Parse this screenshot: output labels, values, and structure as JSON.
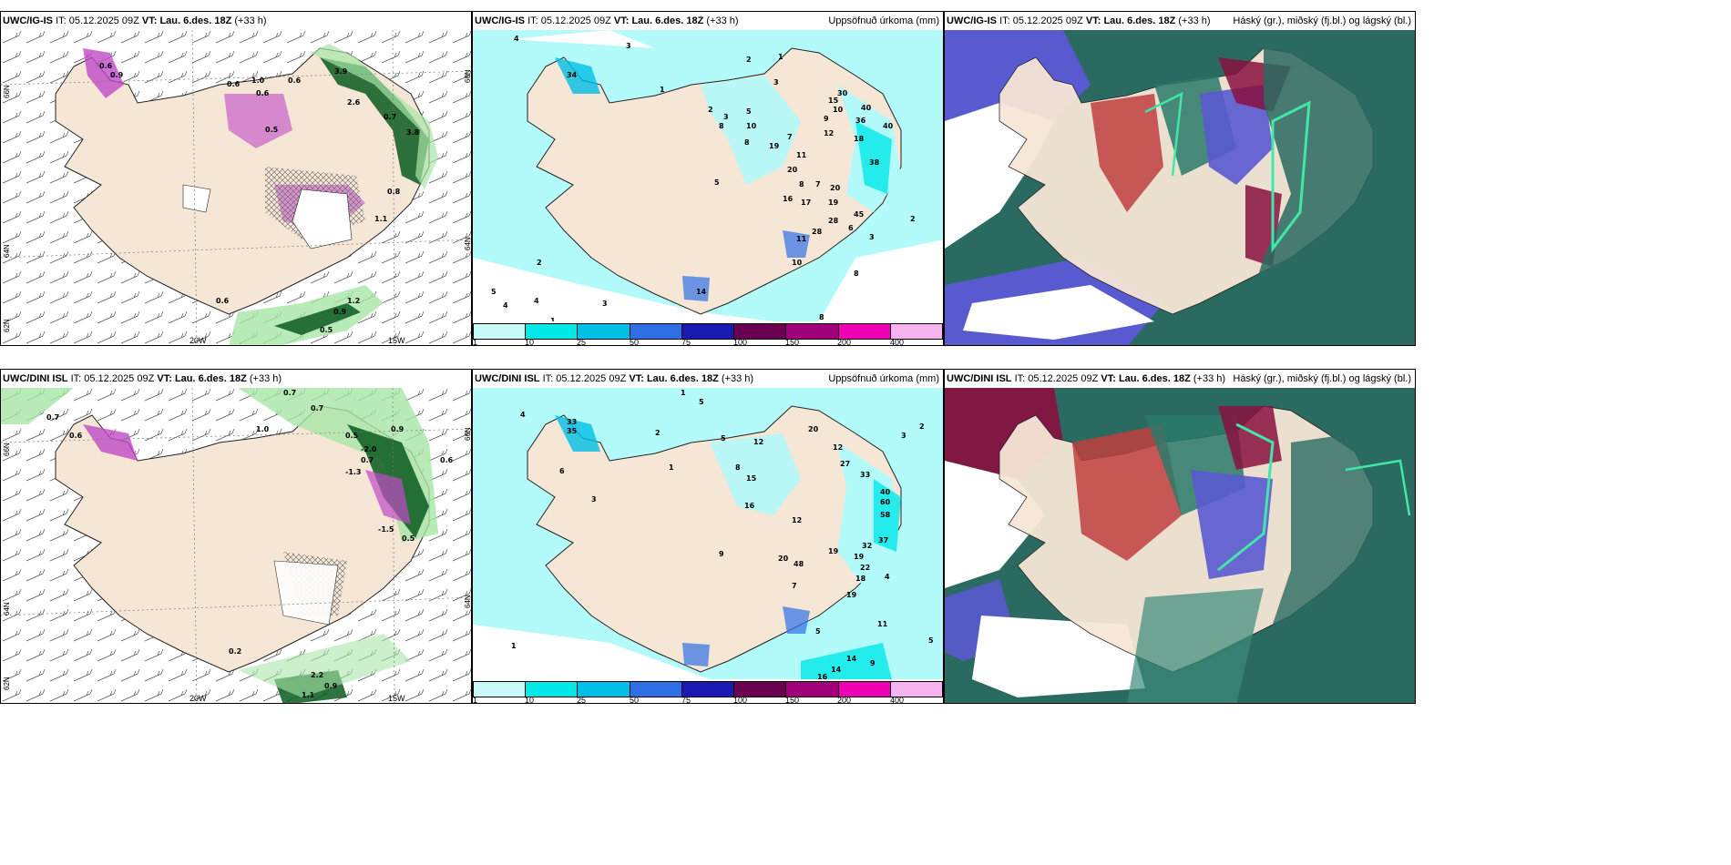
{
  "panels": [
    {
      "model": "UWC/IG-IS",
      "it_label": "IT:",
      "it": "05.12.2025 09Z",
      "vt_label": "VT:",
      "vt": "Lau. 6.des. 18Z",
      "lead": "(+33 h)",
      "right": ""
    },
    {
      "model": "UWC/IG-IS",
      "it_label": "IT:",
      "it": "05.12.2025 09Z",
      "vt_label": "VT:",
      "vt": "Lau. 6.des. 18Z",
      "lead": "(+33 h)",
      "right": "Uppsöfnuð úrkoma (mm)"
    },
    {
      "model": "UWC/IG-IS",
      "it_label": "IT:",
      "it": "05.12.2025 09Z",
      "vt_label": "VT:",
      "vt": "Lau. 6.des. 18Z",
      "lead": "(+33 h)",
      "right": "Háský (gr.), miðský (fj.bl.) og lágský (bl.)"
    },
    {
      "model": "UWC/DINI ISL",
      "it_label": "IT:",
      "it": "05.12.2025 09Z",
      "vt_label": "VT:",
      "vt": "Lau. 6.des. 18Z",
      "lead": "(+33 h)",
      "right": ""
    },
    {
      "model": "UWC/DINI ISL",
      "it_label": "IT:",
      "it": "05.12.2025 09Z",
      "vt_label": "VT:",
      "vt": "Lau. 6.des. 18Z",
      "lead": "(+33 h)",
      "right": "Uppsöfnuð úrkoma (mm)"
    },
    {
      "model": "UWC/DINI ISL",
      "it_label": "IT:",
      "it": "05.12.2025 09Z",
      "vt_label": "VT:",
      "vt": "Lau. 6.des. 18Z",
      "lead": "(+33 h)",
      "right": "Háský (gr.), miðský (fj.bl.) og lágský (bl.)"
    }
  ],
  "axes": {
    "lat_labels": [
      "66N",
      "64N",
      "62N"
    ],
    "lon_labels": [
      "20W",
      "15W"
    ]
  },
  "colorbar": {
    "ticks": [
      "1",
      "10",
      "25",
      "50",
      "75",
      "100",
      "150",
      "200",
      "400"
    ],
    "colors": [
      "#c8fafa",
      "#00e8e8",
      "#00bfe6",
      "#2f6fe6",
      "#1a1ab3",
      "#6a0050",
      "#a0007a",
      "#f000b4",
      "#f5b4f0"
    ]
  },
  "colors": {
    "land": "#f6e6d6",
    "sea_precip": "#b3fafa",
    "green_dark": "#0a5a1e",
    "green_light": "#a8e6a8",
    "magenta": "#c04ac8",
    "cloud_high": "#2a7a6a",
    "cloud_mid": "#c04040",
    "cloud_low": "#5a5ad0"
  },
  "precip_top": {
    "labels": [
      "4",
      "3",
      "2",
      "1",
      "34",
      "1",
      "3",
      "2",
      "3",
      "5",
      "8",
      "10",
      "7",
      "19",
      "8",
      "15",
      "9",
      "10",
      "30",
      "40",
      "36",
      "40",
      "18",
      "38",
      "12",
      "5",
      "20",
      "11",
      "8",
      "7",
      "20",
      "16",
      "17",
      "19",
      "28",
      "45",
      "10",
      "6",
      "11",
      "28",
      "3",
      "2",
      "2",
      "4",
      "1",
      "5",
      "4",
      "3",
      "8",
      "8",
      "14"
    ]
  },
  "precip_bottom": {
    "labels": [
      "1",
      "4",
      "5",
      "6",
      "33",
      "35",
      "3",
      "2",
      "1",
      "5",
      "12",
      "8",
      "15",
      "16",
      "9",
      "12",
      "20",
      "12",
      "27",
      "33",
      "40",
      "60",
      "58",
      "37",
      "32",
      "19",
      "20",
      "19",
      "22",
      "48",
      "18",
      "7",
      "19",
      "5",
      "14",
      "14",
      "9",
      "16",
      "11",
      "4",
      "5",
      "3",
      "2",
      "1"
    ]
  },
  "temp_top": {
    "labels": [
      "0.6",
      "0.9",
      "0.6",
      "1.0",
      "0.6",
      "0.6",
      "3.9",
      "2.6",
      "0.5",
      "0.7",
      "3.8",
      "1.1",
      "0.6",
      "0.8",
      "1.2",
      "0.9",
      "0.5"
    ]
  },
  "temp_bottom": {
    "labels": [
      "0.7",
      "0.7",
      "0.6",
      "1.0",
      "0.7",
      "0.5",
      "0.9",
      "-2.0",
      "-1.3",
      "0.7",
      "0.6",
      "-1.5",
      "0.5",
      "2.2",
      "0.9",
      "1.1",
      "0.2"
    ]
  }
}
